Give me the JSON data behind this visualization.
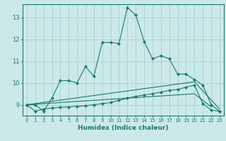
{
  "xlabel": "Humidex (Indice chaleur)",
  "background_color": "#cce9e9",
  "grid_color": "#aad4d4",
  "line_color": "#1a7a6e",
  "xlim": [
    -0.5,
    23.5
  ],
  "ylim": [
    8.5,
    13.6
  ],
  "yticks": [
    9,
    10,
    11,
    12,
    13
  ],
  "xticks": [
    0,
    1,
    2,
    3,
    4,
    5,
    6,
    7,
    8,
    9,
    10,
    11,
    12,
    13,
    14,
    15,
    16,
    17,
    18,
    19,
    20,
    21,
    22,
    23
  ],
  "line1_x": [
    0,
    1,
    2,
    3,
    4,
    5,
    6,
    7,
    8,
    9,
    10,
    11,
    12,
    13,
    14,
    15,
    16,
    17,
    18,
    19,
    20,
    21,
    22,
    23
  ],
  "line1_y": [
    9.0,
    9.0,
    8.7,
    9.3,
    10.1,
    10.1,
    10.0,
    10.75,
    10.3,
    11.85,
    11.85,
    11.8,
    13.45,
    13.1,
    11.9,
    11.1,
    11.25,
    11.1,
    10.4,
    10.4,
    10.15,
    9.9,
    9.0,
    8.7
  ],
  "line2_x": [
    0,
    1,
    2,
    3,
    4,
    5,
    6,
    7,
    8,
    9,
    10,
    11,
    12,
    13,
    14,
    15,
    16,
    17,
    18,
    19,
    20,
    21,
    22,
    23
  ],
  "line2_y": [
    9.0,
    8.7,
    8.8,
    8.85,
    8.88,
    8.9,
    8.93,
    8.95,
    9.0,
    9.05,
    9.1,
    9.2,
    9.3,
    9.38,
    9.45,
    9.5,
    9.58,
    9.65,
    9.7,
    9.8,
    9.9,
    9.05,
    8.75,
    8.7
  ],
  "line3_x": [
    0,
    20,
    23
  ],
  "line3_y": [
    9.0,
    10.05,
    8.8
  ],
  "line4_x": [
    0,
    20,
    22
  ],
  "line4_y": [
    9.0,
    9.5,
    8.9
  ]
}
